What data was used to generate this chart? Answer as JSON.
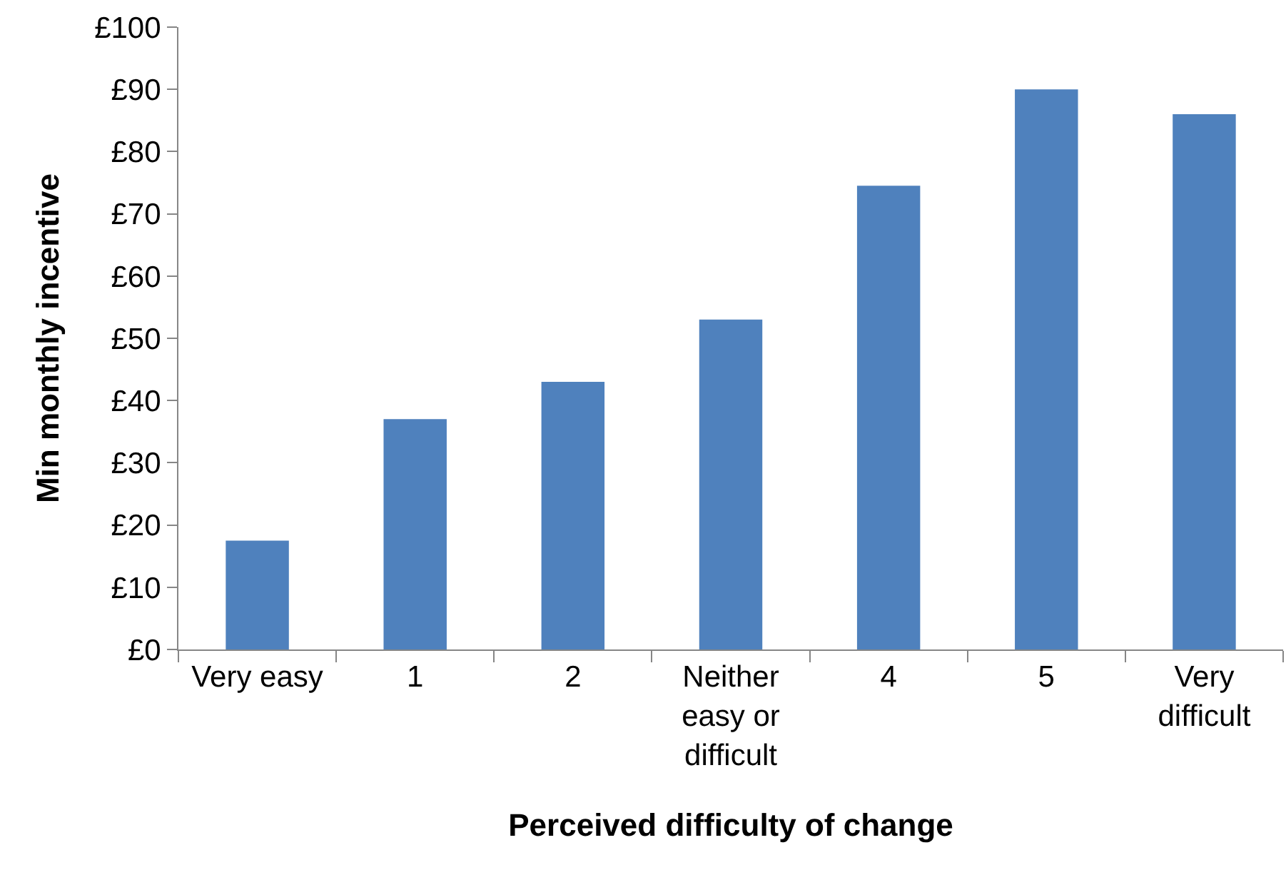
{
  "chart_data": {
    "type": "bar",
    "xlabel": "Perceived difficulty of change",
    "ylabel": "Min monthly incentive",
    "categories": [
      "Very easy",
      "1",
      "2",
      "Neither easy or difficult",
      "4",
      "5",
      "Very difficult"
    ],
    "values": [
      17.5,
      37,
      43,
      53,
      74.5,
      90,
      86
    ],
    "color": "#4f81bd",
    "ylim": [
      0,
      100
    ],
    "yticks": [
      {
        "value": 0,
        "label": "£0"
      },
      {
        "value": 10,
        "label": "£10"
      },
      {
        "value": 20,
        "label": "£20"
      },
      {
        "value": 30,
        "label": "£30"
      },
      {
        "value": 40,
        "label": "£40"
      },
      {
        "value": 50,
        "label": "£50"
      },
      {
        "value": 60,
        "label": "£60"
      },
      {
        "value": 70,
        "label": "£70"
      },
      {
        "value": 80,
        "label": "£80"
      },
      {
        "value": 90,
        "label": "£90"
      },
      {
        "value": 100,
        "label": "£100"
      }
    ]
  }
}
